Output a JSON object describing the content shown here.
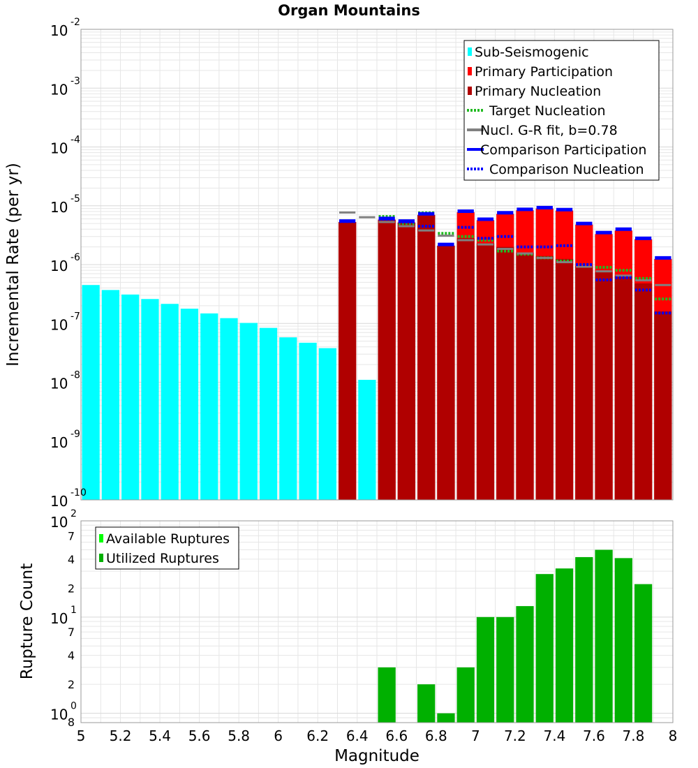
{
  "colors": {
    "sub_seismogenic": "#00ffff",
    "primary_participation": "#ff0000",
    "primary_nucleation": "#b00000",
    "target_nucleation": "#22bb22",
    "gr_fit": "#808080",
    "comparison": "#0000ff",
    "available": "#00ff00",
    "utilized": "#00b000"
  },
  "chart_data": [
    {
      "type": "bar",
      "title": "Organ Mountains",
      "xlabel": "Magnitude",
      "ylabel": "Incremental Rate (per yr)",
      "yscale": "log",
      "xlim": [
        5,
        8
      ],
      "ylim": [
        1e-10,
        0.01
      ],
      "x_ticks": [
        "5",
        "5.2",
        "5.4",
        "5.6",
        "5.8",
        "6",
        "6.2",
        "6.4",
        "6.6",
        "6.8",
        "7",
        "7.2",
        "7.4",
        "7.6",
        "7.8",
        "8"
      ],
      "y_ticks": [
        {
          "base": "10",
          "exp": "-10",
          "value": 1e-10
        },
        {
          "base": "10",
          "exp": "-9",
          "value": 1e-09
        },
        {
          "base": "10",
          "exp": "-8",
          "value": 1e-08
        },
        {
          "base": "10",
          "exp": "-7",
          "value": 1e-07
        },
        {
          "base": "10",
          "exp": "-6",
          "value": 1e-06
        },
        {
          "base": "10",
          "exp": "-5",
          "value": 1e-05
        },
        {
          "base": "10",
          "exp": "-4",
          "value": 0.0001
        },
        {
          "base": "10",
          "exp": "-3",
          "value": 0.001
        },
        {
          "base": "10",
          "exp": "-2",
          "value": 0.01
        }
      ],
      "legend": [
        {
          "label": "Sub-Seismogenic",
          "style": "box",
          "color": "#00ffff"
        },
        {
          "label": "Primary Participation",
          "style": "box",
          "color": "#ff0000"
        },
        {
          "label": "Primary Nucleation",
          "style": "box",
          "color": "#b00000"
        },
        {
          "label": "Target Nucleation",
          "style": "dotted",
          "color": "#22bb22"
        },
        {
          "label": "Nucl. G-R fit, b=0.78",
          "style": "line",
          "color": "#808080"
        },
        {
          "label": "Comparison Participation",
          "style": "line",
          "color": "#0000ff"
        },
        {
          "label": "Comparison Nucleation",
          "style": "dotted",
          "color": "#0000ff"
        }
      ],
      "legend_position": "top-right",
      "series": [
        {
          "name": "Sub-Seismogenic",
          "x": [
            5.05,
            5.15,
            5.25,
            5.35,
            5.45,
            5.55,
            5.65,
            5.75,
            5.85,
            5.95,
            6.05,
            6.15,
            6.25,
            6.45
          ],
          "values": [
            4.5e-07,
            3.7e-07,
            3.1e-07,
            2.6e-07,
            2.15e-07,
            1.78e-07,
            1.48e-07,
            1.23e-07,
            1.02e-07,
            8.4e-08,
            5.8e-08,
            4.7e-08,
            3.8e-08,
            1.1e-08
          ]
        },
        {
          "name": "Primary Participation",
          "x": [
            6.35,
            6.55,
            6.65,
            6.75,
            6.85,
            6.95,
            7.05,
            7.15,
            7.25,
            7.35,
            7.45,
            7.55,
            7.65,
            7.75,
            7.85,
            7.95
          ],
          "values": [
            5.3e-06,
            5.8e-06,
            5.2e-06,
            7e-06,
            2.1e-06,
            7.8e-06,
            5.7e-06,
            7.3e-06,
            8.4e-06,
            9e-06,
            8.3e-06,
            4.8e-06,
            3.3e-06,
            3.8e-06,
            2.7e-06,
            1.25e-06
          ]
        },
        {
          "name": "Primary Nucleation",
          "x": [
            6.35,
            6.55,
            6.65,
            6.75,
            6.85,
            6.95,
            7.05,
            7.15,
            7.25,
            7.35,
            7.45,
            7.55,
            7.65,
            7.75,
            7.85,
            7.95
          ],
          "values": [
            5.3e-06,
            5.8e-06,
            5.2e-06,
            7e-06,
            2.1e-06,
            2.8e-06,
            2.3e-06,
            2e-06,
            1.6e-06,
            1.4e-06,
            1.25e-06,
            9.5e-07,
            7.5e-07,
            6.5e-07,
            4.8e-07,
            1.6e-07
          ]
        },
        {
          "name": "Target Nucleation",
          "x": [
            6.35,
            6.55,
            6.65,
            6.75,
            6.85,
            6.95,
            7.05,
            7.15,
            7.25,
            7.35,
            7.45,
            7.55,
            7.65,
            7.75,
            7.85,
            7.95
          ],
          "values": [
            5.5e-06,
            6.6e-06,
            5e-06,
            7.6e-06,
            3.4e-06,
            3e-06,
            2.6e-06,
            1.7e-06,
            1.5e-06,
            1.3e-06,
            1.15e-06,
            1e-06,
            9e-07,
            8e-07,
            5.8e-07,
            2.6e-07
          ]
        },
        {
          "name": "Nucl. G-R fit, b=0.78",
          "x": [
            6.35,
            6.45,
            6.55,
            6.65,
            6.75,
            6.85,
            6.95,
            7.05,
            7.15,
            7.25,
            7.35,
            7.45,
            7.55,
            7.65,
            7.75,
            7.85,
            7.95
          ],
          "values": [
            7.7e-06,
            6.4e-06,
            5.3e-06,
            4.5e-06,
            3.8e-06,
            3.1e-06,
            2.6e-06,
            2.2e-06,
            1.85e-06,
            1.55e-06,
            1.3e-06,
            1.1e-06,
            9.2e-07,
            7.7e-07,
            6.5e-07,
            5.4e-07,
            4.5e-07
          ]
        },
        {
          "name": "Comparison Participation",
          "x": [
            6.35,
            6.55,
            6.65,
            6.75,
            6.85,
            6.95,
            7.05,
            7.15,
            7.25,
            7.35,
            7.45,
            7.55,
            7.65,
            7.75,
            7.85,
            7.95
          ],
          "values": [
            5.5e-06,
            6.1e-06,
            5.5e-06,
            7.3e-06,
            2.2e-06,
            8.1e-06,
            5.9e-06,
            7.6e-06,
            8.7e-06,
            9.3e-06,
            8.6e-06,
            5e-06,
            3.5e-06,
            4e-06,
            2.8e-06,
            1.3e-06
          ]
        },
        {
          "name": "Comparison Nucleation",
          "x": [
            6.35,
            6.55,
            6.65,
            6.75,
            6.85,
            6.95,
            7.05,
            7.15,
            7.25,
            7.35,
            7.45,
            7.55,
            7.65,
            7.75,
            7.85,
            7.95
          ],
          "values": [
            5.4e-06,
            5.9e-06,
            5.3e-06,
            4.5e-06,
            2.2e-06,
            4.3e-06,
            2.8e-06,
            3e-06,
            2e-06,
            2e-06,
            2.1e-06,
            1e-06,
            5.5e-07,
            6e-07,
            3.7e-07,
            1.5e-07
          ]
        }
      ]
    },
    {
      "type": "bar",
      "xlabel": "Magnitude",
      "ylabel": "Rupture Count",
      "yscale": "log",
      "xlim": [
        5,
        8
      ],
      "ylim": [
        0.8,
        100
      ],
      "x_ticks": [
        "5",
        "5.2",
        "5.4",
        "5.6",
        "5.8",
        "6",
        "6.2",
        "6.4",
        "6.6",
        "6.8",
        "7",
        "7.2",
        "7.4",
        "7.6",
        "7.8",
        "8"
      ],
      "y_ticks": [
        {
          "base": "10",
          "exp": "2",
          "value": 100
        },
        {
          "base": "10",
          "exp": "1",
          "value": 10
        },
        {
          "base": "10",
          "exp": "0",
          "value": 1
        }
      ],
      "y_minor_labels": [
        {
          "label": "7",
          "value": 70
        },
        {
          "label": "4",
          "value": 40
        },
        {
          "label": "2",
          "value": 20
        },
        {
          "label": "7",
          "value": 7
        },
        {
          "label": "4",
          "value": 4
        },
        {
          "label": "2",
          "value": 2
        },
        {
          "label": "8",
          "value": 0.8
        }
      ],
      "legend": [
        {
          "label": "Available Ruptures",
          "style": "box",
          "color": "#00ff00"
        },
        {
          "label": "Utilized Ruptures",
          "style": "box",
          "color": "#00b000"
        }
      ],
      "legend_position": "top-left",
      "series": [
        {
          "name": "Utilized Ruptures",
          "x": [
            6.55,
            6.75,
            6.85,
            6.95,
            7.05,
            7.15,
            7.25,
            7.35,
            7.45,
            7.55,
            7.65,
            7.75,
            7.85
          ],
          "values": [
            3,
            2,
            1,
            3,
            10,
            10,
            13,
            28,
            32,
            42,
            50,
            41,
            22
          ]
        }
      ]
    }
  ]
}
